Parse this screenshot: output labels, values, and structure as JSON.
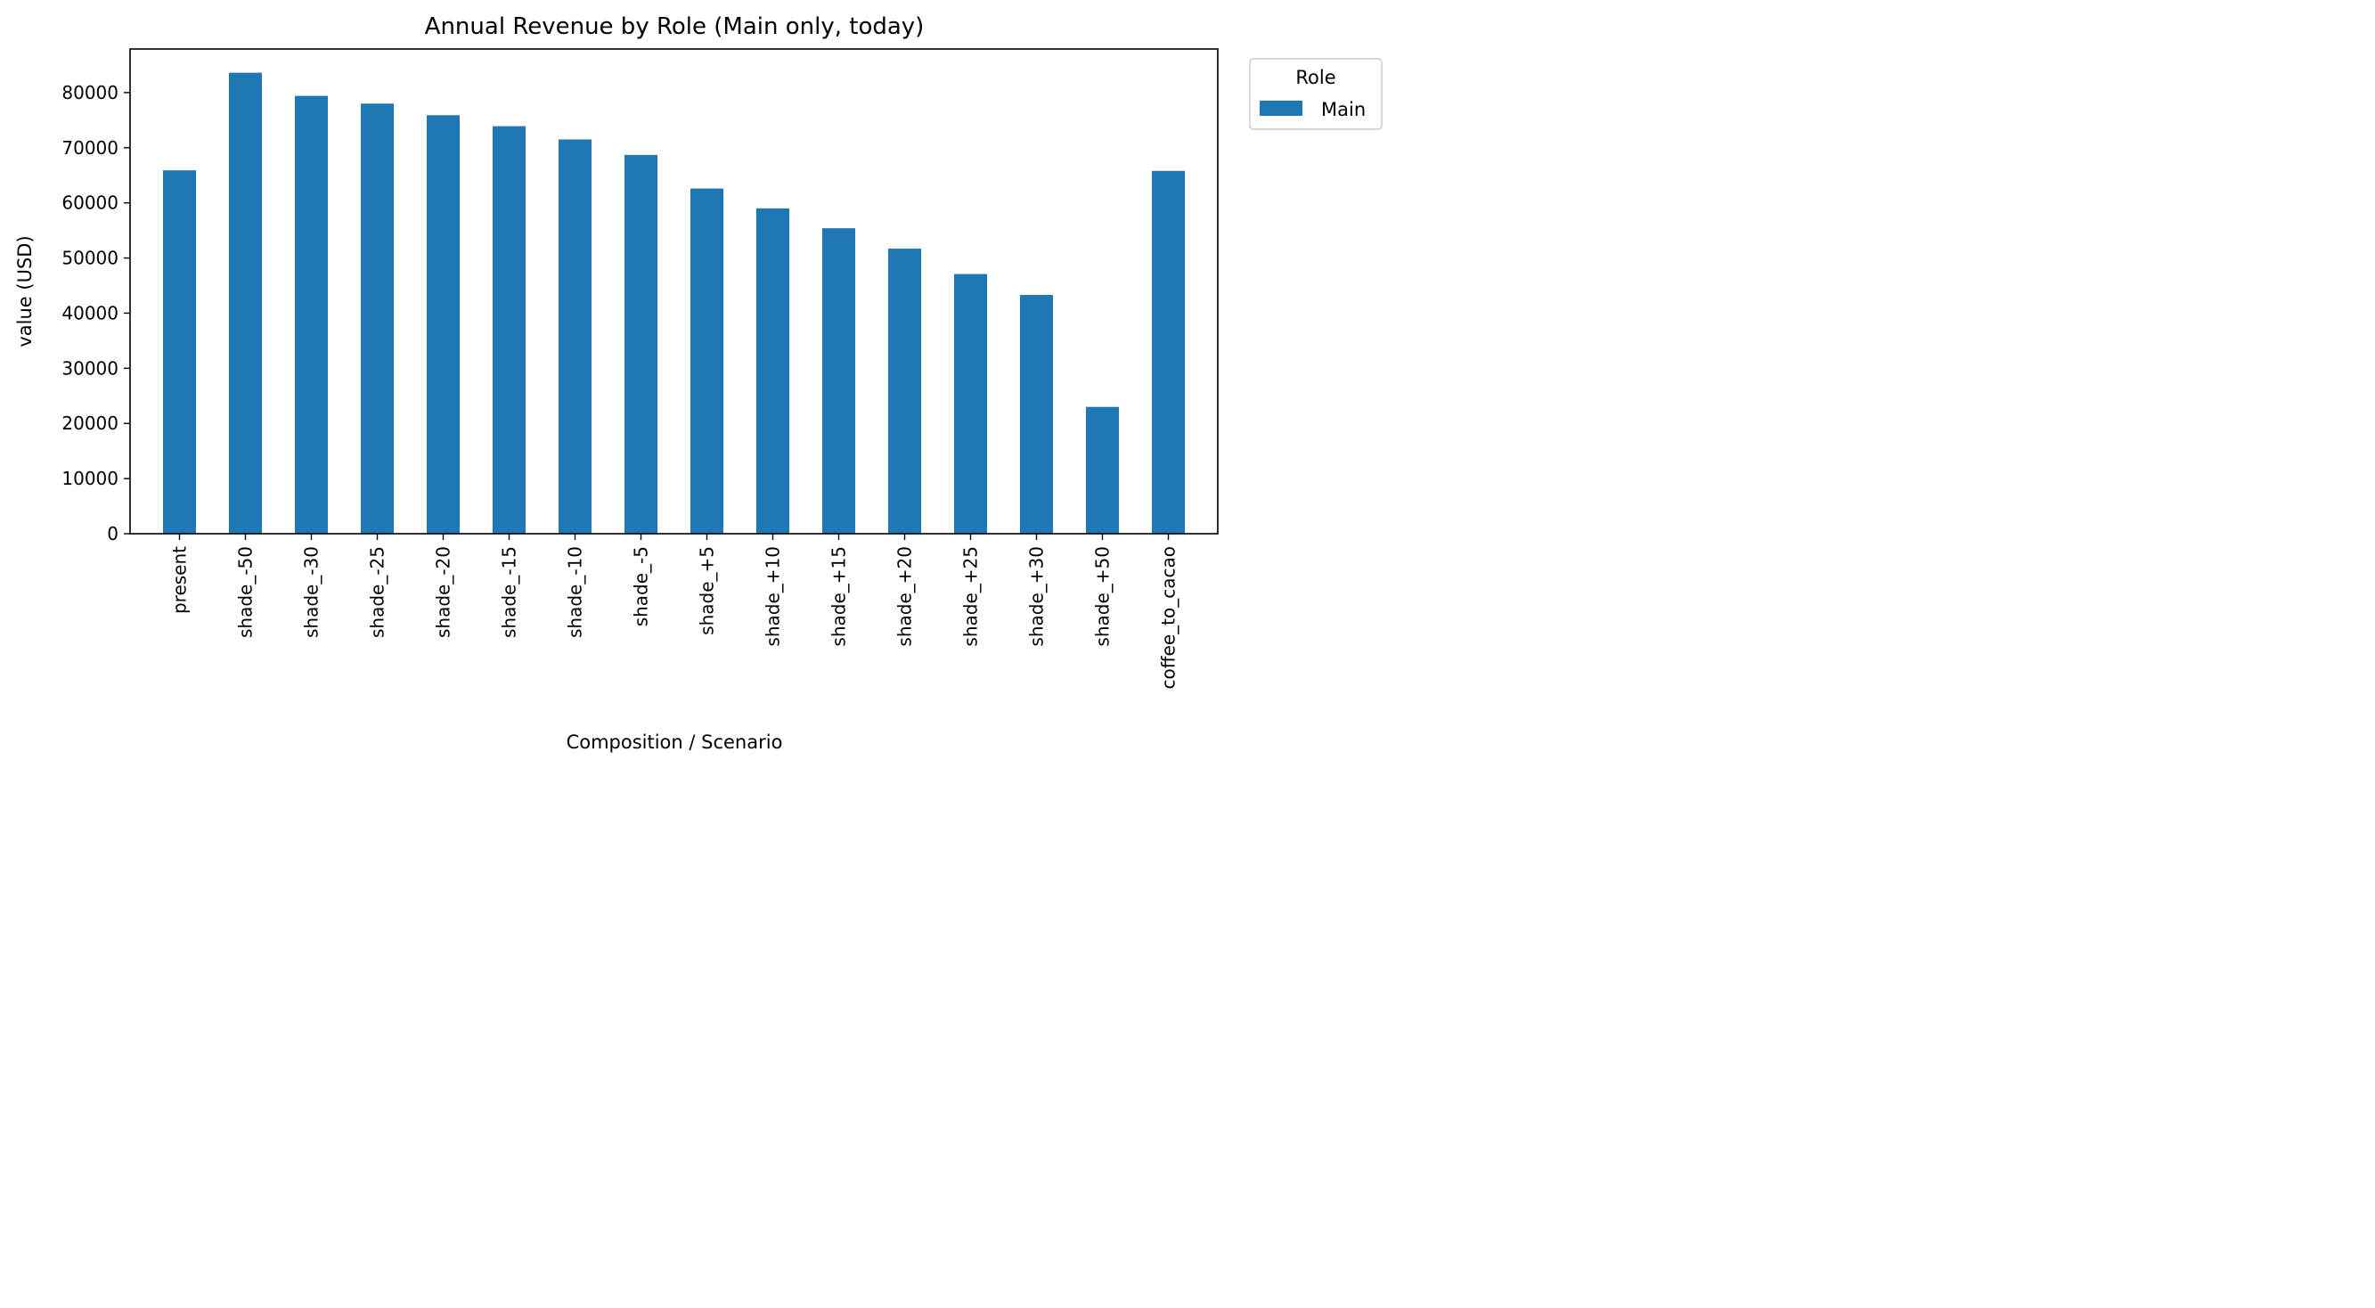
{
  "chart_data": {
    "type": "bar",
    "title": "Annual Revenue by Role (Main only, today)",
    "xlabel": "Composition / Scenario",
    "ylabel": "value (USD)",
    "categories": [
      "present",
      "shade_-50",
      "shade_-30",
      "shade_-25",
      "shade_-20",
      "shade_-15",
      "shade_-10",
      "shade_-5",
      "shade_+5",
      "shade_+10",
      "shade_+15",
      "shade_+20",
      "shade_+25",
      "shade_+30",
      "shade_+50",
      "coffee_to_cacao"
    ],
    "series": [
      {
        "name": "Main",
        "color": "#1f77b4",
        "values": [
          65900,
          83600,
          79400,
          78000,
          75900,
          73900,
          71500,
          68700,
          62600,
          59000,
          55400,
          51700,
          47100,
          43300,
          23000,
          65800
        ]
      }
    ],
    "ylim": [
      0,
      87900
    ],
    "yticks": [
      0,
      10000,
      20000,
      30000,
      40000,
      50000,
      60000,
      70000,
      80000
    ],
    "legend": {
      "title": "Role",
      "placement": "outside-top-right"
    },
    "grid": false
  }
}
